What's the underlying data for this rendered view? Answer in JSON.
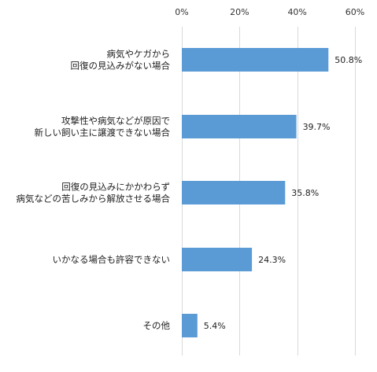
{
  "chart_data": {
    "type": "bar",
    "orientation": "horizontal",
    "categories": [
      [
        "病気やケガから",
        "回復の見込みがない場合"
      ],
      [
        "攻撃性や病気などが原因で",
        "新しい飼い主に譲渡できない場合"
      ],
      [
        "回復の見込みにかかわらず",
        "病気などの苦しみから解放させる場合"
      ],
      [
        "いかなる場合も許容できない"
      ],
      [
        "その他"
      ]
    ],
    "values": [
      50.8,
      39.7,
      35.8,
      24.3,
      5.4
    ],
    "value_labels": [
      "50.8%",
      "39.7%",
      "35.8%",
      "24.3%",
      "5.4%"
    ],
    "xlim": [
      0,
      60
    ],
    "xticks": [
      0,
      20,
      40,
      60
    ],
    "xtick_labels": [
      "0%",
      "20%",
      "40%",
      "60%"
    ],
    "axis_position": "top",
    "grid": true,
    "bar_color": "#5b9bd5",
    "grid_color": "#d9d9d9",
    "title": "",
    "xlabel": "",
    "ylabel": ""
  }
}
